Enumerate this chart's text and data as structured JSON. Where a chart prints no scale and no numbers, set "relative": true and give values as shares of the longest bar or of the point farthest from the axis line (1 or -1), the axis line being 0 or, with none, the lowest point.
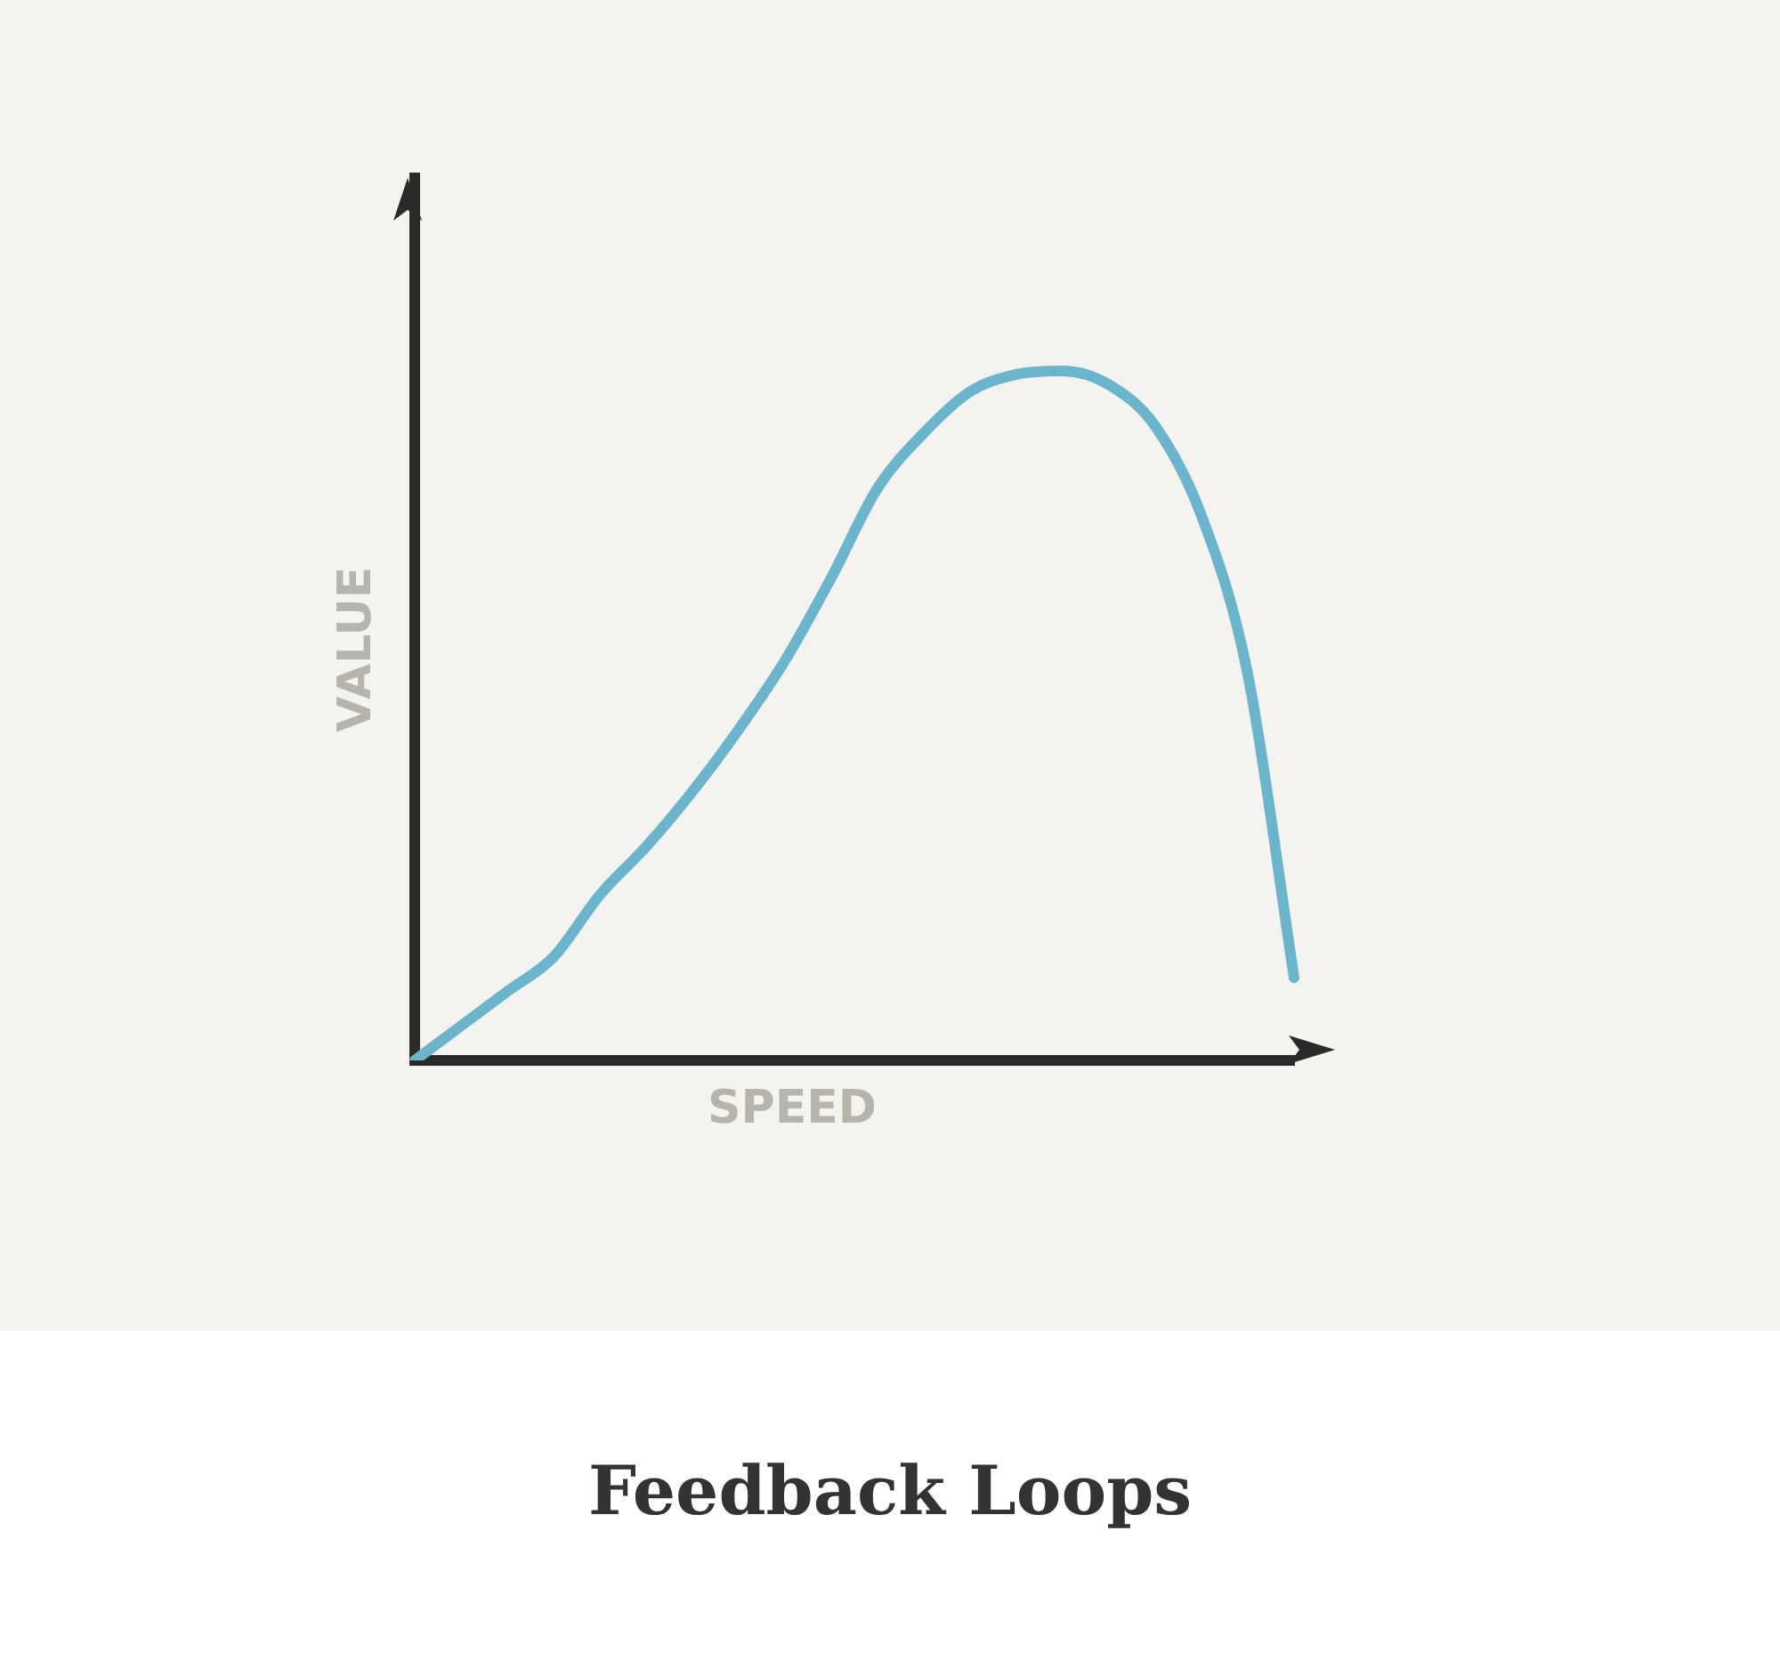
{
  "chart_data": {
    "type": "line",
    "title": "Feedback Loops",
    "xlabel": "SPEED",
    "ylabel": "VALUE",
    "relative": true,
    "categories": [
      null,
      null,
      null,
      null,
      null,
      null,
      null,
      null,
      null,
      null,
      null,
      null,
      null,
      null,
      null,
      null,
      null,
      null,
      null,
      null
    ],
    "series": [
      {
        "color": "#6ab4cc",
        "values": [
          0,
          0.05,
          0.1,
          0.15,
          0.24,
          0.31,
          0.39,
          0.48,
          0.58,
          0.7,
          0.83,
          0.91,
          0.97,
          0.995,
          1,
          0.98,
          0.92,
          0.79,
          0.56,
          0.12
        ]
      }
    ],
    "grid": false,
    "legend": false,
    "marker": "none",
    "line_style": "solid"
  }
}
